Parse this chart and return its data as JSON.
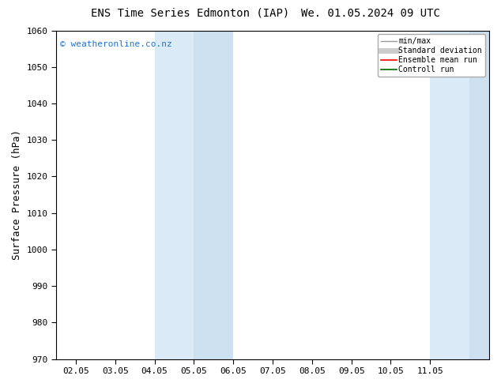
{
  "title_left": "ENS Time Series Edmonton (IAP)",
  "title_right": "We. 01.05.2024 09 UTC",
  "ylabel": "Surface Pressure (hPa)",
  "ylim": [
    970,
    1060
  ],
  "yticks": [
    970,
    980,
    990,
    1000,
    1010,
    1020,
    1030,
    1040,
    1050,
    1060
  ],
  "xlim": [
    -0.5,
    10.5
  ],
  "xtick_labels": [
    "02.05",
    "03.05",
    "04.05",
    "05.05",
    "06.05",
    "07.05",
    "08.05",
    "09.05",
    "10.05",
    "11.05"
  ],
  "xtick_positions": [
    0,
    1,
    2,
    3,
    4,
    5,
    6,
    7,
    8,
    9
  ],
  "shaded_bands": [
    {
      "xmin": 2.0,
      "xmax": 3.0
    },
    {
      "xmin": 3.0,
      "xmax": 4.0
    },
    {
      "xmin": 9.0,
      "xmax": 10.0
    },
    {
      "xmin": 10.0,
      "xmax": 10.5
    }
  ],
  "shade_color": "#daeaf7",
  "shade_alpha": 1.0,
  "shade_color2": "#cde0f0",
  "watermark": "© weatheronline.co.nz",
  "watermark_color": "#2277cc",
  "legend_entries": [
    {
      "label": "min/max",
      "color": "#999999",
      "lw": 1.0
    },
    {
      "label": "Standard deviation",
      "color": "#cccccc",
      "lw": 5
    },
    {
      "label": "Ensemble mean run",
      "color": "#ff0000",
      "lw": 1.2
    },
    {
      "label": "Controll run",
      "color": "#006600",
      "lw": 1.2
    }
  ],
  "bg_color": "#ffffff",
  "title_fontsize": 10,
  "axis_label_fontsize": 9,
  "tick_fontsize": 8,
  "font_family": "DejaVu Sans Mono"
}
